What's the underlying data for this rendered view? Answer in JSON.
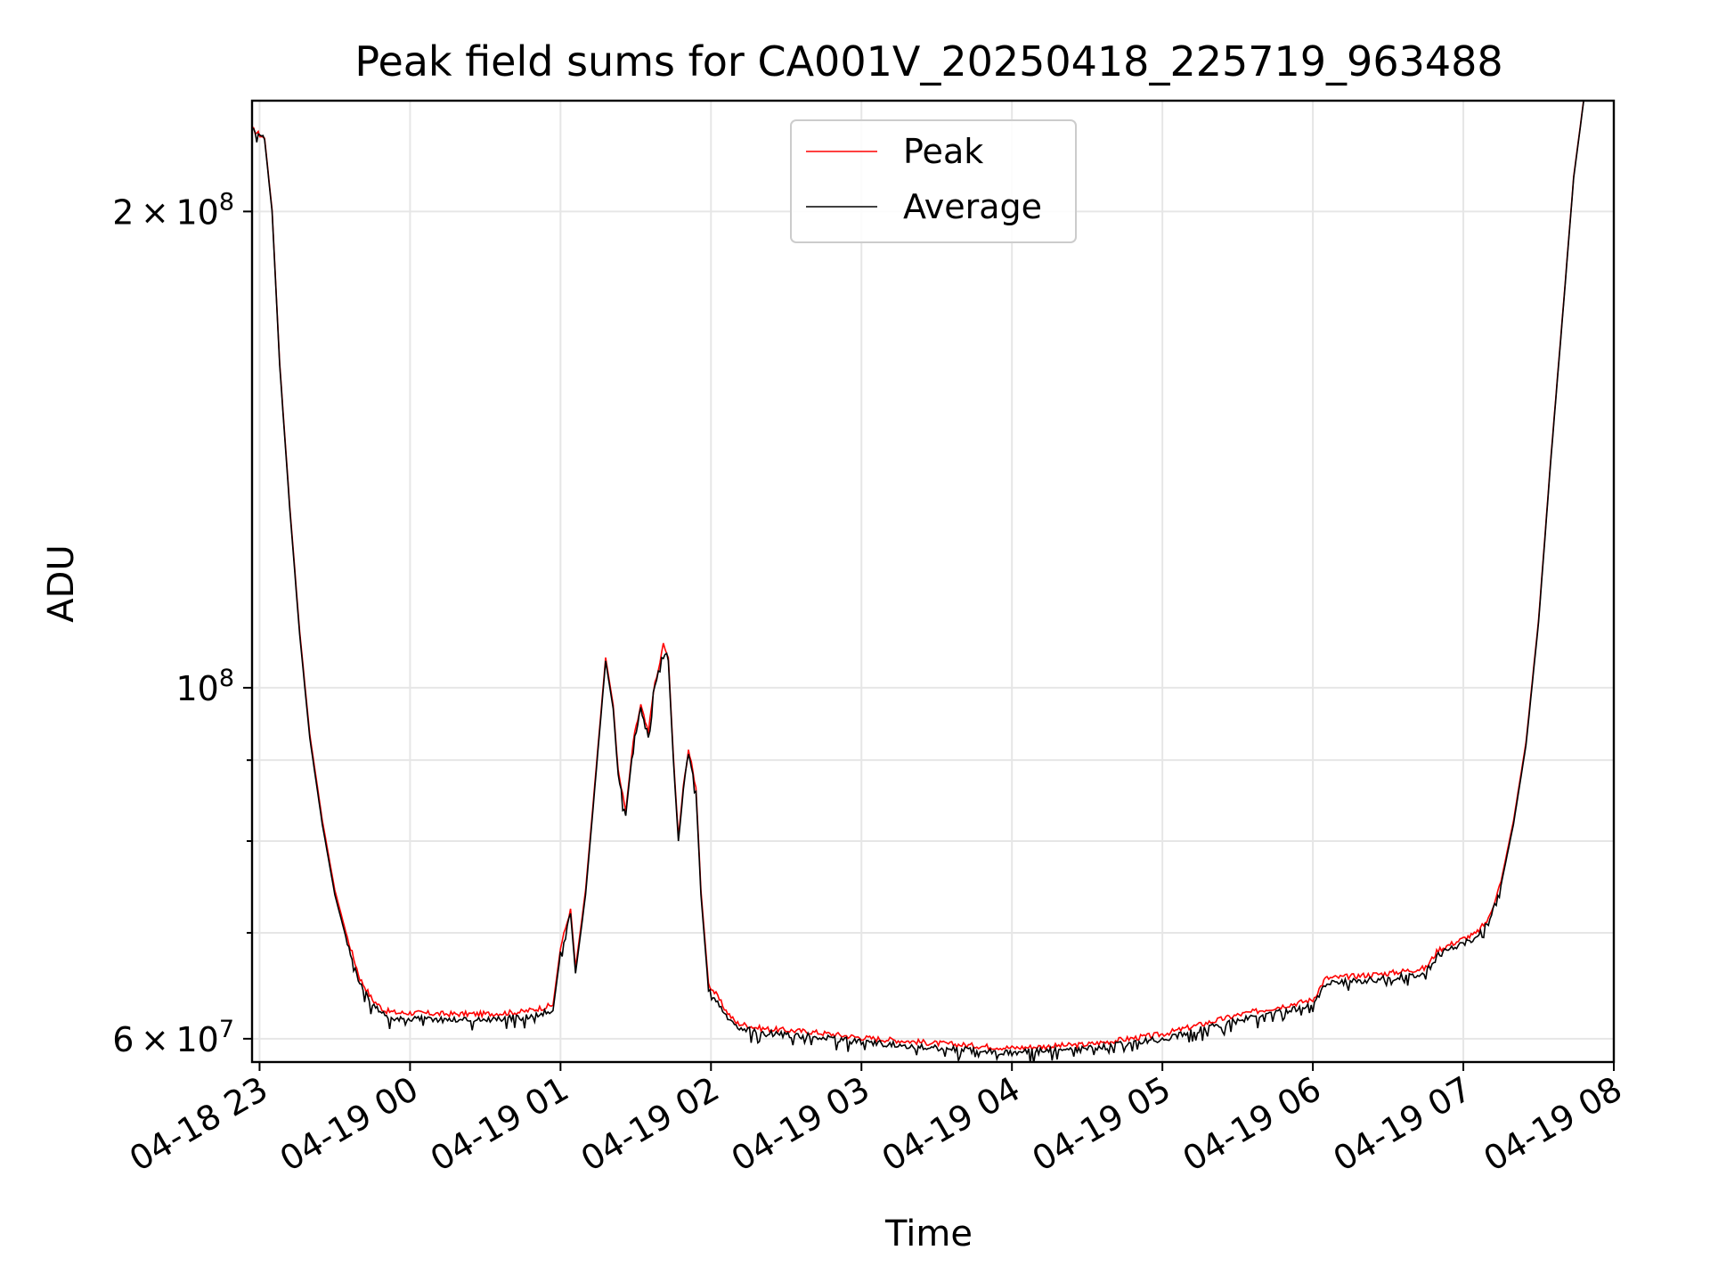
{
  "chart_data": {
    "type": "line",
    "title": "Peak field sums for CA001V_20250418_225719_963488",
    "xlabel": "Time",
    "ylabel": "ADU",
    "yscale": "log",
    "xlim": [
      "2025-04-18 22:57",
      "2025-04-19 08:00"
    ],
    "ylim": [
      58000000,
      235000000
    ],
    "xticks": [
      "04-18 23",
      "04-19 00",
      "04-19 01",
      "04-19 02",
      "04-19 03",
      "04-19 04",
      "04-19 05",
      "04-19 06",
      "04-19 07",
      "04-19 08"
    ],
    "yticks": [
      {
        "value": 60000000,
        "mantissa": "6",
        "times": "×",
        "base": "10",
        "exp": "7"
      },
      {
        "value": 100000000,
        "mantissa": "",
        "times": "",
        "base": "10",
        "exp": "8"
      },
      {
        "value": 200000000,
        "mantissa": "2",
        "times": "×",
        "base": "10",
        "exp": "8"
      }
    ],
    "yminor": [
      70000000,
      80000000,
      90000000
    ],
    "grid": true,
    "legend_position": "upper center",
    "series": [
      {
        "name": "Peak",
        "color": "#ff0000"
      },
      {
        "name": "Average",
        "color": "#000000"
      }
    ],
    "x": [
      "2025-04-18 22:57",
      "2025-04-18 23:02",
      "2025-04-18 23:05",
      "2025-04-18 23:08",
      "2025-04-18 23:12",
      "2025-04-18 23:16",
      "2025-04-18 23:20",
      "2025-04-18 23:25",
      "2025-04-18 23:30",
      "2025-04-18 23:35",
      "2025-04-18 23:40",
      "2025-04-18 23:45",
      "2025-04-18 23:50",
      "2025-04-18 23:55",
      "2025-04-19 00:00",
      "2025-04-19 00:15",
      "2025-04-19 00:30",
      "2025-04-19 00:45",
      "2025-04-19 00:57",
      "2025-04-19 01:00",
      "2025-04-19 01:04",
      "2025-04-19 01:06",
      "2025-04-19 01:10",
      "2025-04-19 01:13",
      "2025-04-19 01:18",
      "2025-04-19 01:21",
      "2025-04-19 01:23",
      "2025-04-19 01:26",
      "2025-04-19 01:29",
      "2025-04-19 01:32",
      "2025-04-19 01:35",
      "2025-04-19 01:37",
      "2025-04-19 01:39",
      "2025-04-19 01:41",
      "2025-04-19 01:43",
      "2025-04-19 01:45",
      "2025-04-19 01:47",
      "2025-04-19 01:49",
      "2025-04-19 01:51",
      "2025-04-19 01:54",
      "2025-04-19 01:56",
      "2025-04-19 01:59",
      "2025-04-19 02:02",
      "2025-04-19 02:06",
      "2025-04-19 02:10",
      "2025-04-19 02:20",
      "2025-04-19 02:40",
      "2025-04-19 03:00",
      "2025-04-19 03:30",
      "2025-04-19 04:00",
      "2025-04-19 04:30",
      "2025-04-19 05:00",
      "2025-04-19 05:30",
      "2025-04-19 06:00",
      "2025-04-19 06:05",
      "2025-04-19 06:30",
      "2025-04-19 06:45",
      "2025-04-19 06:50",
      "2025-04-19 07:00",
      "2025-04-19 07:05",
      "2025-04-19 07:10",
      "2025-04-19 07:15",
      "2025-04-19 07:20",
      "2025-04-19 07:25",
      "2025-04-19 07:30",
      "2025-04-19 07:35",
      "2025-04-19 07:40",
      "2025-04-19 07:44",
      "2025-04-19 07:48"
    ],
    "average": [
      225000000,
      222000000,
      200000000,
      160000000,
      130000000,
      108000000,
      93000000,
      82000000,
      74000000,
      69000000,
      65000000,
      63000000,
      62000000,
      61800000,
      61800000,
      61700000,
      61700000,
      61900000,
      62500000,
      68000000,
      72000000,
      66000000,
      74000000,
      84000000,
      104000000,
      97000000,
      88000000,
      83000000,
      92000000,
      97000000,
      93000000,
      99000000,
      102000000,
      106000000,
      104000000,
      90000000,
      80000000,
      86000000,
      91000000,
      86000000,
      74000000,
      64500000,
      63500000,
      62000000,
      61000000,
      60500000,
      60200000,
      59700000,
      59200000,
      58800000,
      59100000,
      60000000,
      61600000,
      63000000,
      65000000,
      65500000,
      66000000,
      67800000,
      69000000,
      69500000,
      71000000,
      75000000,
      82000000,
      92000000,
      110000000,
      140000000,
      175000000,
      210000000,
      235000000
    ],
    "peak": [
      225500000,
      222500000,
      200500000,
      160500000,
      130500000,
      108500000,
      93500000,
      82500000,
      74500000,
      69500000,
      65500000,
      63500000,
      62500000,
      62300000,
      62300000,
      62200000,
      62200000,
      62400000,
      63000000,
      68500000,
      72500000,
      66500000,
      74500000,
      84500000,
      104500000,
      97500000,
      88500000,
      83500000,
      92500000,
      97500000,
      93500000,
      99500000,
      102500000,
      106500000,
      104500000,
      90500000,
      80500000,
      86500000,
      91500000,
      86500000,
      74500000,
      65000000,
      64000000,
      62500000,
      61400000,
      60900000,
      60600000,
      60100000,
      59600000,
      59200000,
      59500000,
      60400000,
      62100000,
      63500000,
      65500000,
      66000000,
      66500000,
      68300000,
      69400000,
      69900000,
      71400000,
      75400000,
      82400000,
      92400000,
      110400000,
      140400000,
      175400000,
      210400000,
      235400000
    ]
  }
}
